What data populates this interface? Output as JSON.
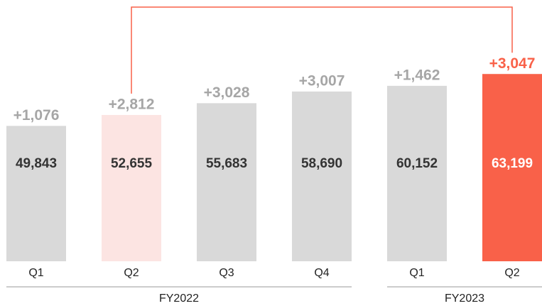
{
  "chart_data": {
    "type": "bar",
    "categories": [
      "Q1",
      "Q2",
      "Q3",
      "Q4",
      "Q1",
      "Q2"
    ],
    "groups": [
      "FY2022",
      "FY2023"
    ],
    "values": [
      49843,
      52655,
      55683,
      58690,
      60152,
      63199
    ],
    "value_labels": [
      "49,843",
      "52,655",
      "55,683",
      "58,690",
      "60,152",
      "63,199"
    ],
    "deltas": [
      1076,
      2812,
      3028,
      3007,
      1462,
      3047
    ],
    "delta_labels": [
      "+1,076",
      "+2,812",
      "+3,028",
      "+3,007",
      "+1,462",
      "+3,047"
    ],
    "colors": [
      "#d9d9d9",
      "#fce4e2",
      "#d9d9d9",
      "#d9d9d9",
      "#d9d9d9",
      "#f96149"
    ],
    "ylim": [
      15000,
      70000
    ]
  }
}
